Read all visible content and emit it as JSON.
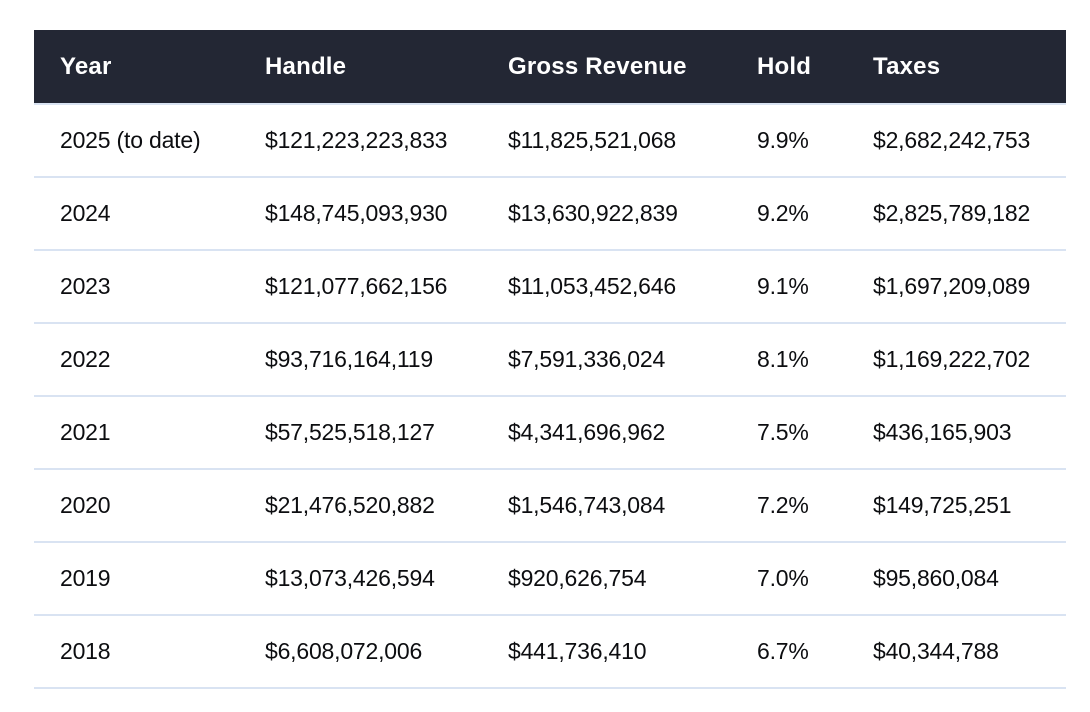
{
  "style": {
    "header_background": "#232734",
    "header_text_color": "#ffffff",
    "body_text_color": "#0c0d10",
    "divider_color": "#d9e3f2",
    "page_background": "#ffffff"
  },
  "chart_data": {
    "type": "table",
    "title": "",
    "columns": [
      "Year",
      "Handle",
      "Gross Revenue",
      "Hold",
      "Taxes"
    ],
    "rows": [
      [
        "2025 (to date)",
        "$121,223,223,833",
        "$11,825,521,068",
        "9.9%",
        "$2,682,242,753"
      ],
      [
        "2024",
        "$148,745,093,930",
        "$13,630,922,839",
        "9.2%",
        "$2,825,789,182"
      ],
      [
        "2023",
        "$121,077,662,156",
        "$11,053,452,646",
        "9.1%",
        "$1,697,209,089"
      ],
      [
        "2022",
        "$93,716,164,119",
        "$7,591,336,024",
        "8.1%",
        "$1,169,222,702"
      ],
      [
        "2021",
        "$57,525,518,127",
        "$4,341,696,962",
        "7.5%",
        "$436,165,903"
      ],
      [
        "2020",
        "$21,476,520,882",
        "$1,546,743,084",
        "7.2%",
        "$149,725,251"
      ],
      [
        "2019",
        "$13,073,426,594",
        "$920,626,754",
        "7.0%",
        "$95,860,084"
      ],
      [
        "2018",
        "$6,608,072,006",
        "$441,736,410",
        "6.7%",
        "$40,344,788"
      ]
    ],
    "column_slugs": [
      "year",
      "handle",
      "gross-revenue",
      "hold",
      "taxes"
    ]
  }
}
